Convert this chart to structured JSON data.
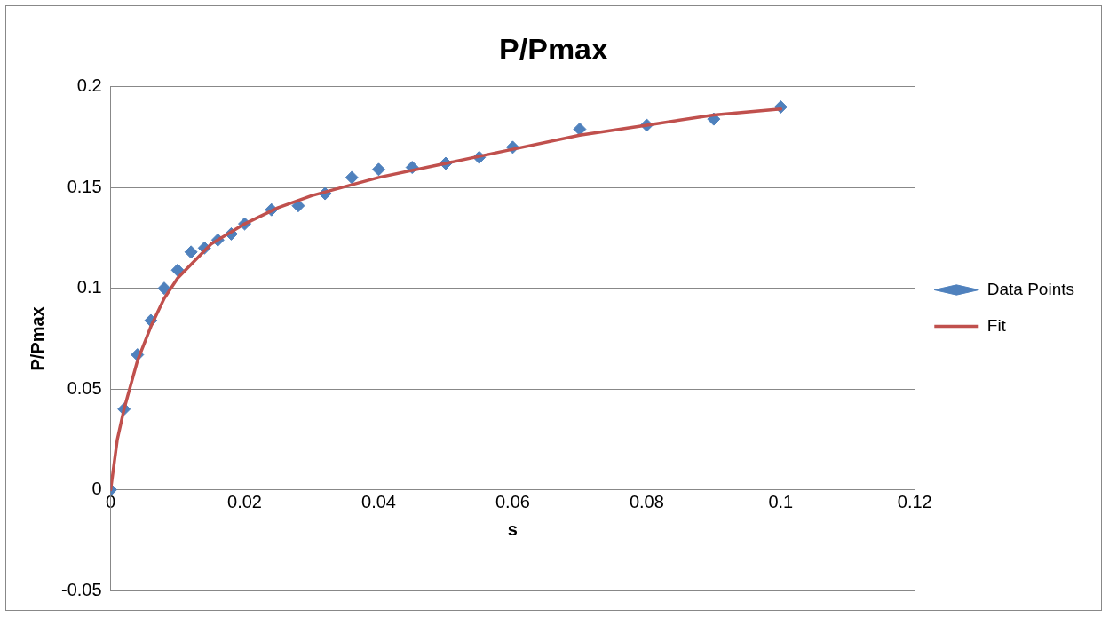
{
  "chart_data": {
    "type": "scatter",
    "title": "P/Pmax",
    "xlabel": "s",
    "ylabel": "P/Pmax",
    "xlim": [
      0,
      0.12
    ],
    "xticks": [
      0,
      0.02,
      0.04,
      0.06,
      0.08,
      0.1,
      0.12
    ],
    "ylim": [
      -0.05,
      0.2
    ],
    "yticks": [
      -0.05,
      0,
      0.05,
      0.1,
      0.15,
      0.2
    ],
    "grid": "y",
    "legend": "right",
    "marker": "diamond",
    "series": [
      {
        "name": "Data Points",
        "color": "#4f81bd",
        "x": [
          0,
          0.002,
          0.004,
          0.006,
          0.008,
          0.01,
          0.012,
          0.014,
          0.016,
          0.018,
          0.02,
          0.024,
          0.028,
          0.032,
          0.036,
          0.04,
          0.045,
          0.05,
          0.055,
          0.06,
          0.07,
          0.08,
          0.09,
          0.1
        ],
        "values": [
          0,
          0.04,
          0.067,
          0.084,
          0.1,
          0.109,
          0.118,
          0.12,
          0.124,
          0.127,
          0.132,
          0.139,
          0.141,
          0.147,
          0.155,
          0.159,
          0.16,
          0.162,
          0.165,
          0.17,
          0.179,
          0.181,
          0.184,
          0.19
        ]
      },
      {
        "name": "Fit",
        "type": "line",
        "color": "#c0504d",
        "marker": "none",
        "x": [
          0,
          0.001,
          0.002,
          0.004,
          0.006,
          0.008,
          0.01,
          0.015,
          0.02,
          0.025,
          0.03,
          0.04,
          0.05,
          0.06,
          0.07,
          0.08,
          0.09,
          0.1
        ],
        "values": [
          0,
          0.025,
          0.04,
          0.064,
          0.081,
          0.095,
          0.105,
          0.122,
          0.132,
          0.14,
          0.146,
          0.155,
          0.162,
          0.169,
          0.176,
          0.181,
          0.186,
          0.189
        ]
      }
    ]
  }
}
